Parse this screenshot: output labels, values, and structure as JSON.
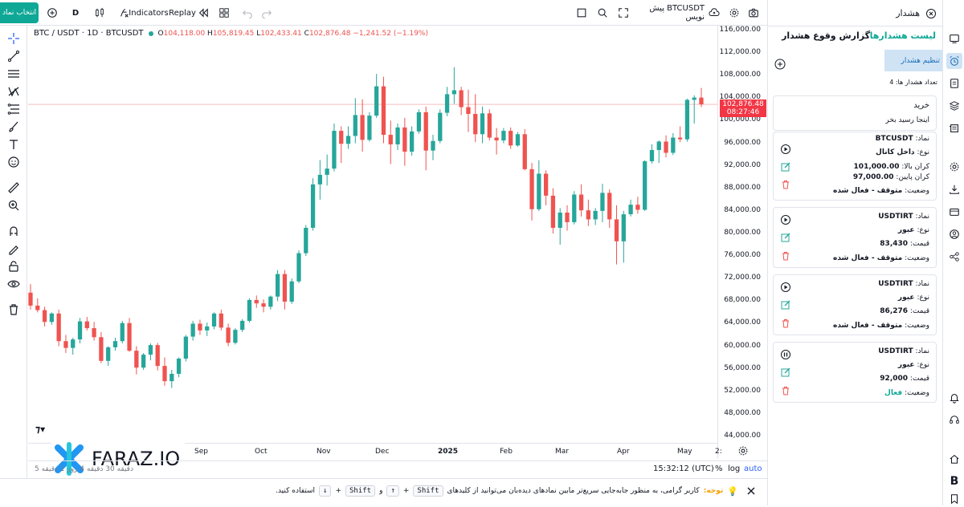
{
  "topbar": {
    "select_symbol": "انتخاب نماد",
    "interval": "D",
    "indicators": "Indicators",
    "replay": "Replay",
    "symbol_note": "BTCUSDT پیش نویس"
  },
  "legend": {
    "symbol": "BTC / USDT · 1D · BTCUSDT",
    "o_label": "O",
    "o": "104,118.00",
    "h_label": "H",
    "h": "105,819.45",
    "l_label": "L",
    "l": "102,433.41",
    "c_label": "C",
    "c": "102,876.48",
    "change": "−1,241.52 (−1.19%)"
  },
  "price_axis": {
    "labels": [
      "116,000.00",
      "112,000.00",
      "108,000.00",
      "104,000.00",
      "100,000.00",
      "96,000.00",
      "92,000.00",
      "88,000.00",
      "84,000.00",
      "80,000.00",
      "76,000.00",
      "72,000.00",
      "68,000.00",
      "64,000.00",
      "60,000.00",
      "56,000.00",
      "52,000.00",
      "48,000.00",
      "44,000.00"
    ],
    "current_price": "102,876.48",
    "countdown": "08:27:46"
  },
  "time_axis": {
    "labels": [
      "Sep",
      "Oct",
      "Nov",
      "Dec",
      "2025",
      "Feb",
      "Mar",
      "Apr",
      "May",
      "2:"
    ]
  },
  "bottom_bar": {
    "ranges": "دقیقه 30  دقیقه 4  روز 1  دقیقه 5",
    "clock": "15:32:12 (UTC)",
    "percent": "%",
    "log": "log",
    "auto": "auto"
  },
  "logo": {
    "text": "FARAZ.IO"
  },
  "notice": {
    "label": "توجه:",
    "text_start": "کاربر گرامی، به منظور جابه‌جایی سریع‌تر مابین نمادهای دیده‌بان می‌توانید از کلیدهای",
    "key1": "Shift",
    "plus": "+",
    "up": "↑",
    "and": "و",
    "key2": "Shift",
    "down": "↓",
    "text_end": "استفاده کنید."
  },
  "panel": {
    "title": "هشدار",
    "tab_list": "لیست هشدارها",
    "tab_report": "گزارش وقوع هشدار",
    "settings": "تنظیم هشدار",
    "count": "تعداد هشدار ها: 4",
    "buy_title": "خرید",
    "buy_sub": "اینجا رسید بخر"
  },
  "alerts": [
    {
      "symbol_label": "نماد:",
      "symbol": "BTCUSDT",
      "type_label": "نوع:",
      "type": "داخل کانال",
      "upper_label": "کران بالا:",
      "upper": "101,000.00",
      "lower_label": "کران پایین:",
      "lower": "97,000.00",
      "status_label": "وضعیت:",
      "status": "متوقف - فعال شده"
    },
    {
      "symbol_label": "نماد:",
      "symbol": "USDTIRT",
      "type_label": "نوع:",
      "type": "عبور",
      "price_label": "قیمت:",
      "price": "83,430",
      "status_label": "وضعیت:",
      "status": "متوقف - فعال شده"
    },
    {
      "symbol_label": "نماد:",
      "symbol": "USDTIRT",
      "type_label": "نوع:",
      "type": "عبور",
      "price_label": "قیمت:",
      "price": "86,276",
      "status_label": "وضعیت:",
      "status": "متوقف - فعال شده"
    },
    {
      "symbol_label": "نماد:",
      "symbol": "USDTIRT",
      "type_label": "نوع:",
      "type": "عبور",
      "price_label": "قیمت:",
      "price": "92,000",
      "status_label": "وضعیت:",
      "status": "فعال"
    }
  ],
  "colors": {
    "up": "#26a69a",
    "down": "#ef5350",
    "accent": "#0fa896",
    "panel_highlight": "#cfe3f5"
  },
  "chart_data": {
    "type": "candlestick",
    "title": "",
    "xlabel": "",
    "ylabel": "",
    "ylim": [
      44000,
      116000
    ],
    "x_ticks": [
      "Sep",
      "Oct",
      "Nov",
      "Dec",
      "2025",
      "Feb",
      "Mar",
      "Apr",
      "May"
    ],
    "series": [
      {
        "values": [
          [
            69500,
            71000,
            66500,
            67200
          ],
          [
            67200,
            68500,
            66000,
            66400
          ],
          [
            66400,
            67000,
            63500,
            64300
          ],
          [
            64300,
            66000,
            63800,
            65800
          ],
          [
            65800,
            66500,
            60000,
            60900
          ],
          [
            60900,
            62000,
            58800,
            59700
          ],
          [
            59700,
            61500,
            58500,
            61200
          ],
          [
            61200,
            65000,
            60500,
            64400
          ],
          [
            64400,
            65200,
            62800,
            63200
          ],
          [
            63200,
            64300,
            61000,
            61600
          ],
          [
            61600,
            62500,
            57000,
            57400
          ],
          [
            57400,
            60000,
            56500,
            59800
          ],
          [
            59800,
            61500,
            59200,
            60900
          ],
          [
            60900,
            64500,
            60500,
            64100
          ],
          [
            64100,
            65000,
            59000,
            59200
          ],
          [
            59200,
            60000,
            55000,
            56200
          ],
          [
            56200,
            58800,
            55800,
            58500
          ],
          [
            58500,
            60500,
            57500,
            60200
          ],
          [
            60200,
            60600,
            55700,
            56500
          ],
          [
            56500,
            58000,
            53000,
            53800
          ],
          [
            53800,
            55800,
            52600,
            55100
          ],
          [
            55100,
            58000,
            54500,
            57800
          ],
          [
            57800,
            62000,
            57300,
            61700
          ],
          [
            61700,
            64500,
            61000,
            64000
          ],
          [
            64000,
            64700,
            62000,
            62800
          ],
          [
            62800,
            64200,
            61800,
            63500
          ],
          [
            63500,
            66000,
            63000,
            65800
          ],
          [
            65800,
            66500,
            62800,
            63300
          ],
          [
            63300,
            64000,
            60000,
            60600
          ],
          [
            60600,
            63200,
            60300,
            62900
          ],
          [
            62900,
            64800,
            62500,
            64500
          ],
          [
            64500,
            68500,
            64200,
            68200
          ],
          [
            68200,
            69000,
            66800,
            67600
          ],
          [
            67600,
            68300,
            66000,
            67000
          ],
          [
            67000,
            69000,
            66500,
            68800
          ],
          [
            68800,
            73500,
            68000,
            72800
          ],
          [
            72800,
            73500,
            66500,
            67900
          ],
          [
            67900,
            72000,
            67500,
            71500
          ],
          [
            71500,
            77000,
            71200,
            76500
          ],
          [
            76500,
            81500,
            76000,
            81000
          ],
          [
            81000,
            89800,
            80500,
            88700
          ],
          [
            88700,
            93000,
            86000,
            90400
          ],
          [
            90400,
            94000,
            88500,
            91500
          ],
          [
            91500,
            99500,
            91000,
            98200
          ],
          [
            98200,
            99000,
            92500,
            95900
          ],
          [
            95900,
            99000,
            95000,
            97300
          ],
          [
            97300,
            104000,
            96000,
            101000
          ],
          [
            101000,
            103800,
            94500,
            96600
          ],
          [
            96600,
            101500,
            96300,
            100900
          ],
          [
            100900,
            108300,
            100500,
            106100
          ],
          [
            106100,
            107800,
            96000,
            97500
          ],
          [
            97500,
            100000,
            92300,
            95800
          ],
          [
            95800,
            99500,
            94800,
            98800
          ],
          [
            98800,
            100500,
            92000,
            94500
          ],
          [
            94500,
            99000,
            93800,
            98100
          ],
          [
            98100,
            102000,
            97700,
            101500
          ],
          [
            101500,
            102500,
            91200,
            94700
          ],
          [
            94700,
            97500,
            93000,
            96400
          ],
          [
            96400,
            102000,
            96000,
            101400
          ],
          [
            101400,
            106000,
            100800,
            104700
          ],
          [
            104700,
            109500,
            103000,
            105400
          ],
          [
            105400,
            106000,
            101000,
            102400
          ],
          [
            102400,
            105500,
            98000,
            101200
          ],
          [
            101200,
            104700,
            96200,
            97600
          ],
          [
            97600,
            102500,
            96000,
            101300
          ],
          [
            101300,
            102000,
            96500,
            97000
          ],
          [
            97000,
            98700,
            94000,
            96500
          ],
          [
            96500,
            98700,
            96000,
            98200
          ],
          [
            98200,
            98800,
            95000,
            95600
          ],
          [
            95600,
            98000,
            95400,
            97600
          ],
          [
            97600,
            98500,
            91200,
            91400
          ],
          [
            91400,
            92500,
            82300,
            84300
          ],
          [
            84300,
            93000,
            84000,
            90600
          ],
          [
            90600,
            91200,
            85000,
            86700
          ],
          [
            86700,
            88000,
            80000,
            81000
          ],
          [
            81000,
            84500,
            78000,
            83700
          ],
          [
            83700,
            85000,
            80500,
            82000
          ],
          [
            82000,
            87500,
            81600,
            86900
          ],
          [
            86900,
            88700,
            83000,
            84100
          ],
          [
            84100,
            86000,
            81300,
            82500
          ],
          [
            82500,
            84500,
            81500,
            84000
          ],
          [
            84000,
            88800,
            82000,
            87200
          ],
          [
            87200,
            87800,
            81000,
            82500
          ],
          [
            82500,
            85000,
            74500,
            78600
          ],
          [
            78600,
            84000,
            74800,
            83400
          ],
          [
            83400,
            86000,
            83000,
            85100
          ],
          [
            85100,
            86500,
            83500,
            84200
          ],
          [
            84200,
            93000,
            84000,
            92800
          ],
          [
            92800,
            95800,
            92400,
            94800
          ],
          [
            94800,
            96500,
            92500,
            96300
          ],
          [
            96300,
            97400,
            93500,
            94300
          ],
          [
            94300,
            97800,
            93900,
            97000
          ],
          [
            97000,
            99000,
            96200,
            96700
          ],
          [
            96700,
            103900,
            96300,
            103700
          ],
          [
            103700,
            104500,
            99500,
            104100
          ],
          [
            104100,
            105800,
            102400,
            102900
          ]
        ]
      }
    ]
  }
}
